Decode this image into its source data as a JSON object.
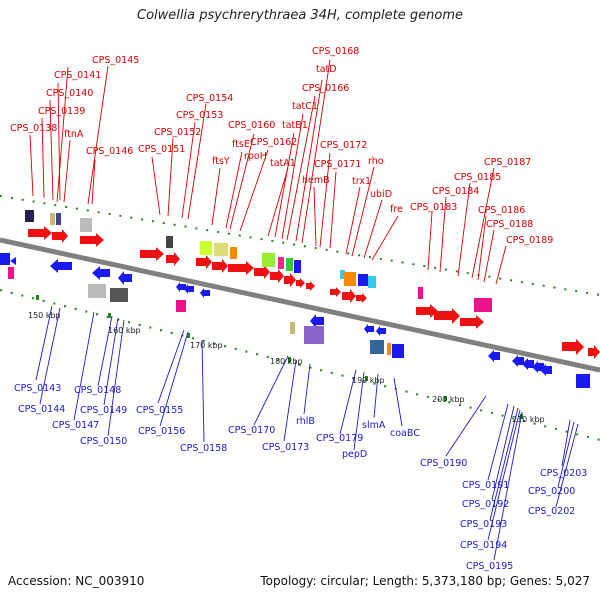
{
  "title": "Colwellia psychrerythraea 34H, complete genome",
  "footer": {
    "accession_label": "Accession: NC_003910",
    "summary": "Topology: circular; Length: 5,373,180 bp; Genes: 5,027"
  },
  "colors": {
    "forward_gene": "#ee1111",
    "reverse_gene": "#1a1aee",
    "top_label": "#d40000",
    "bottom_label": "#1a1acc",
    "backbone": "#7f7f7f",
    "tick": "#1a8a1a"
  },
  "ticks": [
    "150 kbp",
    "160 kbp",
    "170 kbp",
    "180 kbp",
    "190 kbp",
    "200 kbp",
    "210 kbp"
  ],
  "top_labels": [
    "CPS_0168",
    "tatD",
    "CPS_0166",
    "tatC1",
    "tatB1",
    "tatA1",
    "CPS_0162",
    "CPS_0160",
    "ftsE",
    "rpoH",
    "ftsY",
    "CPS_0154",
    "CPS_0153",
    "CPS_0152",
    "CPS_0151",
    "CPS_0145",
    "CPS_0141",
    "CPS_0140",
    "CPS_0139",
    "CPS_0138",
    "ftnA",
    "CPS_0146",
    "CPS_0172",
    "CPS_0171",
    "hemB",
    "rho",
    "trx1",
    "ubiD",
    "fre",
    "CPS_0183",
    "CPS_0184",
    "CPS_0185",
    "CPS_0187",
    "CPS_0186",
    "CPS_0188",
    "CPS_0189"
  ],
  "bottom_labels": [
    "CPS_0143",
    "CPS_0144",
    "CPS_0147",
    "CPS_0148",
    "CPS_0149",
    "CPS_0150",
    "CPS_0155",
    "CPS_0156",
    "CPS_0158",
    "CPS_0170",
    "rhlB",
    "CPS_0173",
    "CPS_0179",
    "pepD",
    "slmA",
    "coaBC",
    "CPS_0190",
    "CPS_0191",
    "CPS_0192",
    "CPS_0193",
    "CPS_0194",
    "CPS_0195",
    "CPS_0203",
    "CPS_0200",
    "CPS_0202"
  ]
}
